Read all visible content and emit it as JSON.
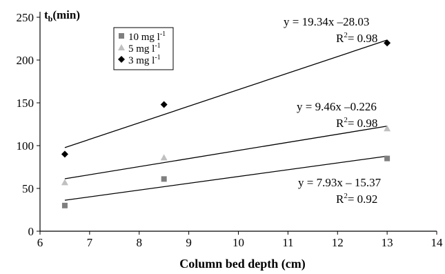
{
  "chart_data": {
    "type": "scatter",
    "title": "",
    "xlabel": "Column bed depth (cm)",
    "ylabel": "t",
    "ylabel_subscript": "b",
    "ylabel_suffix": "(min)",
    "xlim": [
      6,
      14
    ],
    "ylim": [
      0,
      250
    ],
    "x_ticks": [
      6,
      7,
      8,
      9,
      10,
      11,
      12,
      13,
      14
    ],
    "y_ticks": [
      0,
      50,
      100,
      150,
      200,
      250
    ],
    "grid": false,
    "legend_position": "top-left",
    "series": [
      {
        "name": "10 mg l-1",
        "legend_text": "10 mg l",
        "legend_sup": "-1",
        "marker": "square",
        "color": "#7f7f7f",
        "x": [
          6.5,
          8.5,
          13
        ],
        "y": [
          30,
          61,
          85
        ],
        "fit": {
          "slope": 7.93,
          "intercept": -15.37,
          "equation": "y = 7.93x – 15.37",
          "r2_prefix": "R",
          "r2_sup": "2",
          "r2_value": "= 0.92"
        }
      },
      {
        "name": "5 mg l-1",
        "legend_text": "5 mg l",
        "legend_sup": "-1",
        "marker": "triangle",
        "color": "#c0c0c0",
        "x": [
          6.5,
          8.5,
          13
        ],
        "y": [
          57,
          86,
          120
        ],
        "fit": {
          "slope": 9.46,
          "intercept": -0.226,
          "equation": "y = 9.46x –0.226",
          "r2_prefix": "R",
          "r2_sup": "2",
          "r2_value": "= 0.98"
        }
      },
      {
        "name": "3 mg l-1",
        "legend_text": "3 mg l",
        "legend_sup": "-1",
        "marker": "diamond",
        "color": "#000000",
        "x": [
          6.5,
          8.5,
          13
        ],
        "y": [
          90,
          148,
          220
        ],
        "fit": {
          "slope": 19.34,
          "intercept": -28.03,
          "equation": "y = 19.34x –28.03",
          "r2_prefix": "R",
          "r2_sup": "2",
          "r2_value": "= 0.98"
        }
      }
    ]
  }
}
